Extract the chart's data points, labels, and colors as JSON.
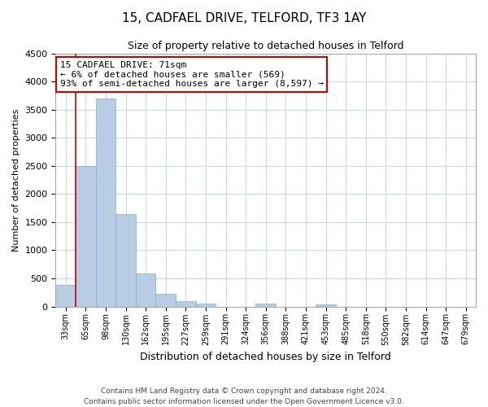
{
  "title": "15, CADFAEL DRIVE, TELFORD, TF3 1AY",
  "subtitle": "Size of property relative to detached houses in Telford",
  "xlabel": "Distribution of detached houses by size in Telford",
  "ylabel": "Number of detached properties",
  "categories": [
    "33sqm",
    "65sqm",
    "98sqm",
    "130sqm",
    "162sqm",
    "195sqm",
    "227sqm",
    "259sqm",
    "291sqm",
    "324sqm",
    "356sqm",
    "388sqm",
    "421sqm",
    "453sqm",
    "485sqm",
    "518sqm",
    "550sqm",
    "582sqm",
    "614sqm",
    "647sqm",
    "679sqm"
  ],
  "values": [
    380,
    2500,
    3700,
    1640,
    590,
    230,
    95,
    50,
    0,
    0,
    50,
    0,
    0,
    30,
    0,
    0,
    0,
    0,
    0,
    0,
    0
  ],
  "bar_color": "#b8cce4",
  "bar_edge_color": "#7bafd4",
  "marker_line_color": "#cc0000",
  "annotation_line1": "15 CADFAEL DRIVE: 71sqm",
  "annotation_line2": "← 6% of detached houses are smaller (569)",
  "annotation_line3": "93% of semi-detached houses are larger (8,597) →",
  "annotation_box_color": "#ffffff",
  "annotation_box_edge": "#cc0000",
  "ylim": [
    0,
    4500
  ],
  "yticks": [
    0,
    500,
    1000,
    1500,
    2000,
    2500,
    3000,
    3500,
    4000,
    4500
  ],
  "footnote1": "Contains HM Land Registry data © Crown copyright and database right 2024.",
  "footnote2": "Contains public sector information licensed under the Open Government Licence v3.0.",
  "bg_color": "#ffffff",
  "grid_color": "#c8d8e8",
  "title_fontsize": 11,
  "subtitle_fontsize": 9,
  "xlabel_fontsize": 9,
  "ylabel_fontsize": 8,
  "tick_fontsize": 8,
  "xtick_fontsize": 7,
  "annotation_fontsize": 8,
  "footnote_fontsize": 6.5
}
